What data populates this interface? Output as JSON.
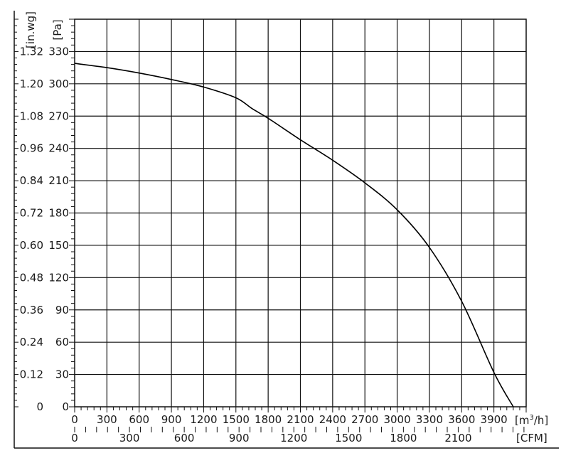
{
  "chart_data": {
    "type": "line",
    "title": "",
    "x_primary": {
      "unit_label": "[m³/h]",
      "unit_base": "[m",
      "unit_sup": "3",
      "unit_tail": "/h]",
      "range": [
        0,
        4200
      ],
      "ticks": [
        "0",
        "300",
        "600",
        "900",
        "1200",
        "1500",
        "1800",
        "2100",
        "2400",
        "2700",
        "3000",
        "3300",
        "3600",
        "3900"
      ]
    },
    "x_secondary": {
      "unit_label": "[CFM]",
      "ticks": [
        "0",
        "300",
        "600",
        "900",
        "1200",
        "1500",
        "1800",
        "2100"
      ]
    },
    "y_primary": {
      "unit_label": "[Pa]",
      "range": [
        0,
        360
      ],
      "ticks": [
        "0",
        "30",
        "60",
        "90",
        "120",
        "150",
        "180",
        "210",
        "240",
        "270",
        "300",
        "330"
      ]
    },
    "y_secondary": {
      "unit_label": "[in.wg]",
      "ticks": [
        "0",
        "0.12",
        "0.24",
        "0.36",
        "0.48",
        "0.60",
        "0.72",
        "0.84",
        "0.96",
        "1.08",
        "1.20",
        "1.32"
      ]
    },
    "grid": true,
    "series": [
      {
        "x": [
          0,
          300,
          600,
          900,
          1200,
          1500,
          1650,
          1800,
          2100,
          2400,
          2700,
          3000,
          3300,
          3600,
          3900,
          4080
        ],
        "y": [
          319,
          315,
          310,
          304,
          297,
          287,
          277,
          268,
          248,
          229,
          208,
          183,
          148,
          98,
          32,
          0
        ],
        "color": "#000000"
      }
    ]
  }
}
